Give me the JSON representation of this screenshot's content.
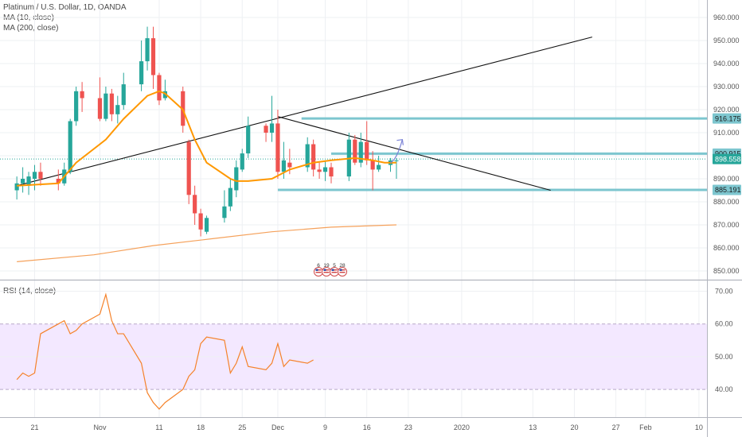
{
  "chart_data": {
    "type": "candlestick",
    "legend": {
      "title": "Platinum / U.S. Dollar, 1D, OANDA",
      "ma10": "MA (10, close)",
      "ma200": "MA (200, close)",
      "rsi": "RSI (14, close)"
    },
    "price_axis": {
      "ticks": [
        "960.000",
        "950.000",
        "940.000",
        "930.000",
        "920.000",
        "910.000",
        "900.000",
        "890.000",
        "880.000",
        "870.000",
        "860.000",
        "850.000"
      ]
    },
    "rsi_axis": {
      "ticks": [
        "70.00",
        "60.00",
        "50.00",
        "40.00"
      ],
      "band": [
        40,
        60
      ]
    },
    "x_axis": {
      "ticks": [
        {
          "label": "21",
          "day": -10
        },
        {
          "label": "Nov",
          "day": 1
        },
        {
          "label": "11",
          "day": 11
        },
        {
          "label": "18",
          "day": 18
        },
        {
          "label": "25",
          "day": 25
        },
        {
          "label": "Dec",
          "day": 31
        },
        {
          "label": "9",
          "day": 39
        },
        {
          "label": "16",
          "day": 46
        },
        {
          "label": "23",
          "day": 53
        },
        {
          "label": "2020",
          "day": 62
        },
        {
          "label": "13",
          "day": 74
        },
        {
          "label": "20",
          "day": 81
        },
        {
          "label": "27",
          "day": 88
        },
        {
          "label": "Feb",
          "day": 93
        },
        {
          "label": "10",
          "day": 102
        }
      ]
    },
    "price_labels": [
      {
        "text": "916.175",
        "value": 916.175,
        "color": "#7dc6cf"
      },
      {
        "text": "900.915",
        "value": 900.915,
        "color": "#7dc6cf"
      },
      {
        "text": "898.558",
        "value": 898.558,
        "color": "#26a69a"
      },
      {
        "text": "885.191",
        "value": 885.191,
        "color": "#7dc6cf"
      }
    ],
    "current_price": 898.558,
    "candles": [
      {
        "d": -13,
        "o": 885,
        "h": 891,
        "l": 881,
        "c": 888
      },
      {
        "d": -12,
        "o": 888,
        "h": 895,
        "l": 884,
        "c": 890
      },
      {
        "d": -11,
        "o": 887,
        "h": 893,
        "l": 883,
        "c": 891
      },
      {
        "d": -10,
        "o": 890,
        "h": 896,
        "l": 885,
        "c": 893
      },
      {
        "d": -9,
        "o": 893,
        "h": 897,
        "l": 887,
        "c": 890
      },
      {
        "d": -6,
        "o": 890,
        "h": 894,
        "l": 885,
        "c": 888
      },
      {
        "d": -5,
        "o": 888,
        "h": 897,
        "l": 887,
        "c": 894
      },
      {
        "d": -4,
        "o": 893,
        "h": 916,
        "l": 892,
        "c": 915
      },
      {
        "d": -3,
        "o": 915,
        "h": 930,
        "l": 913,
        "c": 928
      },
      {
        "d": -2,
        "o": 928,
        "h": 932,
        "l": 919,
        "c": 925
      },
      {
        "d": 1,
        "o": 925,
        "h": 934,
        "l": 915,
        "c": 916
      },
      {
        "d": 2,
        "o": 916,
        "h": 930,
        "l": 915,
        "c": 927
      },
      {
        "d": 3,
        "o": 927,
        "h": 929,
        "l": 915,
        "c": 918
      },
      {
        "d": 4,
        "o": 918,
        "h": 926,
        "l": 914,
        "c": 922
      },
      {
        "d": 5,
        "o": 922,
        "h": 936,
        "l": 920,
        "c": 931
      },
      {
        "d": 8,
        "o": 931,
        "h": 950,
        "l": 928,
        "c": 941
      },
      {
        "d": 9,
        "o": 941,
        "h": 956,
        "l": 937,
        "c": 951
      },
      {
        "d": 10,
        "o": 951,
        "h": 956,
        "l": 929,
        "c": 935
      },
      {
        "d": 11,
        "o": 935,
        "h": 936,
        "l": 922,
        "c": 924
      },
      {
        "d": 12,
        "o": 925,
        "h": 933,
        "l": 924,
        "c": 928
      },
      {
        "d": 15,
        "o": 928,
        "h": 930,
        "l": 910,
        "c": 913
      },
      {
        "d": 16,
        "o": 906,
        "h": 907,
        "l": 879,
        "c": 883
      },
      {
        "d": 17,
        "o": 883,
        "h": 887,
        "l": 870,
        "c": 875
      },
      {
        "d": 18,
        "o": 875,
        "h": 877,
        "l": 865,
        "c": 868
      },
      {
        "d": 19,
        "o": 867,
        "h": 874,
        "l": 866,
        "c": 873
      },
      {
        "d": 22,
        "o": 873,
        "h": 885,
        "l": 871,
        "c": 878
      },
      {
        "d": 23,
        "o": 878,
        "h": 890,
        "l": 876,
        "c": 886
      },
      {
        "d": 24,
        "o": 885,
        "h": 898,
        "l": 882,
        "c": 895
      },
      {
        "d": 25,
        "o": 894,
        "h": 903,
        "l": 893,
        "c": 901
      },
      {
        "d": 26,
        "o": 901,
        "h": 917,
        "l": 899,
        "c": 913
      },
      {
        "d": 29,
        "o": 913,
        "h": 914,
        "l": 906,
        "c": 910
      },
      {
        "d": 30,
        "o": 910,
        "h": 926,
        "l": 906,
        "c": 914
      },
      {
        "d": 31,
        "o": 914,
        "h": 920,
        "l": 890,
        "c": 893
      },
      {
        "d": 32,
        "o": 893,
        "h": 906,
        "l": 890,
        "c": 898
      },
      {
        "d": 33,
        "o": 897,
        "h": 903,
        "l": 892,
        "c": 895
      },
      {
        "d": 36,
        "o": 895,
        "h": 908,
        "l": 893,
        "c": 905
      },
      {
        "d": 37,
        "o": 905,
        "h": 907,
        "l": 891,
        "c": 894
      },
      {
        "d": 38,
        "o": 894,
        "h": 897,
        "l": 890,
        "c": 893
      },
      {
        "d": 39,
        "o": 893,
        "h": 898,
        "l": 889,
        "c": 895
      },
      {
        "d": 40,
        "o": 895,
        "h": 897,
        "l": 888,
        "c": 891
      },
      {
        "d": 43,
        "o": 891,
        "h": 910,
        "l": 889,
        "c": 907
      },
      {
        "d": 44,
        "o": 907,
        "h": 909,
        "l": 896,
        "c": 897
      },
      {
        "d": 45,
        "o": 897,
        "h": 910,
        "l": 895,
        "c": 906
      },
      {
        "d": 46,
        "o": 906,
        "h": 915,
        "l": 896,
        "c": 898
      },
      {
        "d": 47,
        "o": 898,
        "h": 902,
        "l": 885,
        "c": 894
      },
      {
        "d": 48,
        "o": 894,
        "h": 900,
        "l": 893,
        "c": 896
      },
      {
        "d": 50,
        "o": 896,
        "h": 899,
        "l": 893,
        "c": 898
      },
      {
        "d": 51,
        "o": 898,
        "h": 899,
        "l": 890,
        "c": 898
      }
    ],
    "ma10": [
      {
        "d": -13,
        "v": 887
      },
      {
        "d": -6,
        "v": 888
      },
      {
        "d": -3,
        "v": 897
      },
      {
        "d": 2,
        "v": 907
      },
      {
        "d": 5,
        "v": 916
      },
      {
        "d": 9,
        "v": 926
      },
      {
        "d": 11,
        "v": 928
      },
      {
        "d": 12,
        "v": 927
      },
      {
        "d": 15,
        "v": 920
      },
      {
        "d": 17,
        "v": 907
      },
      {
        "d": 19,
        "v": 897
      },
      {
        "d": 23,
        "v": 890
      },
      {
        "d": 24,
        "v": 889
      },
      {
        "d": 26,
        "v": 889
      },
      {
        "d": 30,
        "v": 890
      },
      {
        "d": 33,
        "v": 894
      },
      {
        "d": 37,
        "v": 897
      },
      {
        "d": 40,
        "v": 898
      },
      {
        "d": 44,
        "v": 899
      },
      {
        "d": 47,
        "v": 898
      },
      {
        "d": 49,
        "v": 897
      },
      {
        "d": 51,
        "v": 897
      }
    ],
    "ma200": [
      {
        "d": -13,
        "v": 854
      },
      {
        "d": 0,
        "v": 857
      },
      {
        "d": 10,
        "v": 861
      },
      {
        "d": 20,
        "v": 864
      },
      {
        "d": 30,
        "v": 867
      },
      {
        "d": 40,
        "v": 869
      },
      {
        "d": 51,
        "v": 870
      }
    ],
    "rsi": [
      {
        "d": -13,
        "v": 43
      },
      {
        "d": -12,
        "v": 45
      },
      {
        "d": -11,
        "v": 44
      },
      {
        "d": -10,
        "v": 45
      },
      {
        "d": -9,
        "v": 57
      },
      {
        "d": -6,
        "v": 60
      },
      {
        "d": -5,
        "v": 61
      },
      {
        "d": -4,
        "v": 57
      },
      {
        "d": -3,
        "v": 58
      },
      {
        "d": -2,
        "v": 60
      },
      {
        "d": 1,
        "v": 63
      },
      {
        "d": 2,
        "v": 69
      },
      {
        "d": 3,
        "v": 61
      },
      {
        "d": 4,
        "v": 57
      },
      {
        "d": 5,
        "v": 57
      },
      {
        "d": 8,
        "v": 48
      },
      {
        "d": 9,
        "v": 39
      },
      {
        "d": 10,
        "v": 36
      },
      {
        "d": 11,
        "v": 34
      },
      {
        "d": 12,
        "v": 36
      },
      {
        "d": 15,
        "v": 40
      },
      {
        "d": 16,
        "v": 44
      },
      {
        "d": 17,
        "v": 46
      },
      {
        "d": 18,
        "v": 54
      },
      {
        "d": 19,
        "v": 56
      },
      {
        "d": 22,
        "v": 55
      },
      {
        "d": 23,
        "v": 45
      },
      {
        "d": 24,
        "v": 48
      },
      {
        "d": 25,
        "v": 53
      },
      {
        "d": 26,
        "v": 47
      },
      {
        "d": 29,
        "v": 46
      },
      {
        "d": 30,
        "v": 48
      },
      {
        "d": 31,
        "v": 54
      },
      {
        "d": 32,
        "v": 47
      },
      {
        "d": 33,
        "v": 49
      },
      {
        "d": 36,
        "v": 48
      },
      {
        "d": 37,
        "v": 49
      }
    ],
    "drawings": {
      "trendline_up": [
        {
          "d": -13,
          "v": 887
        },
        {
          "d": 84,
          "v": 951.5
        }
      ],
      "trendline_down": [
        {
          "d": 31,
          "v": 917
        },
        {
          "d": 77,
          "v": 885
        }
      ],
      "hlines": [
        {
          "v": 916.175,
          "from": 35,
          "to": 140
        },
        {
          "v": 900.915,
          "from": 40,
          "to": 140
        },
        {
          "v": 885.191,
          "from": 31,
          "to": 140
        }
      ],
      "arrow": {
        "from": {
          "d": 50,
          "v": 897
        },
        "to": {
          "d": 52,
          "v": 907
        }
      }
    },
    "colors": {
      "up": "#26a69a",
      "down": "#ef5350",
      "ma10": "#ff9800",
      "ma200": "#f5a15b",
      "rsi": "#f5822a",
      "band": "#f3e8ff",
      "level": "#7dc6cf",
      "trend": "#111111"
    },
    "event_markers": [
      "6",
      "19",
      "5",
      "28"
    ]
  }
}
